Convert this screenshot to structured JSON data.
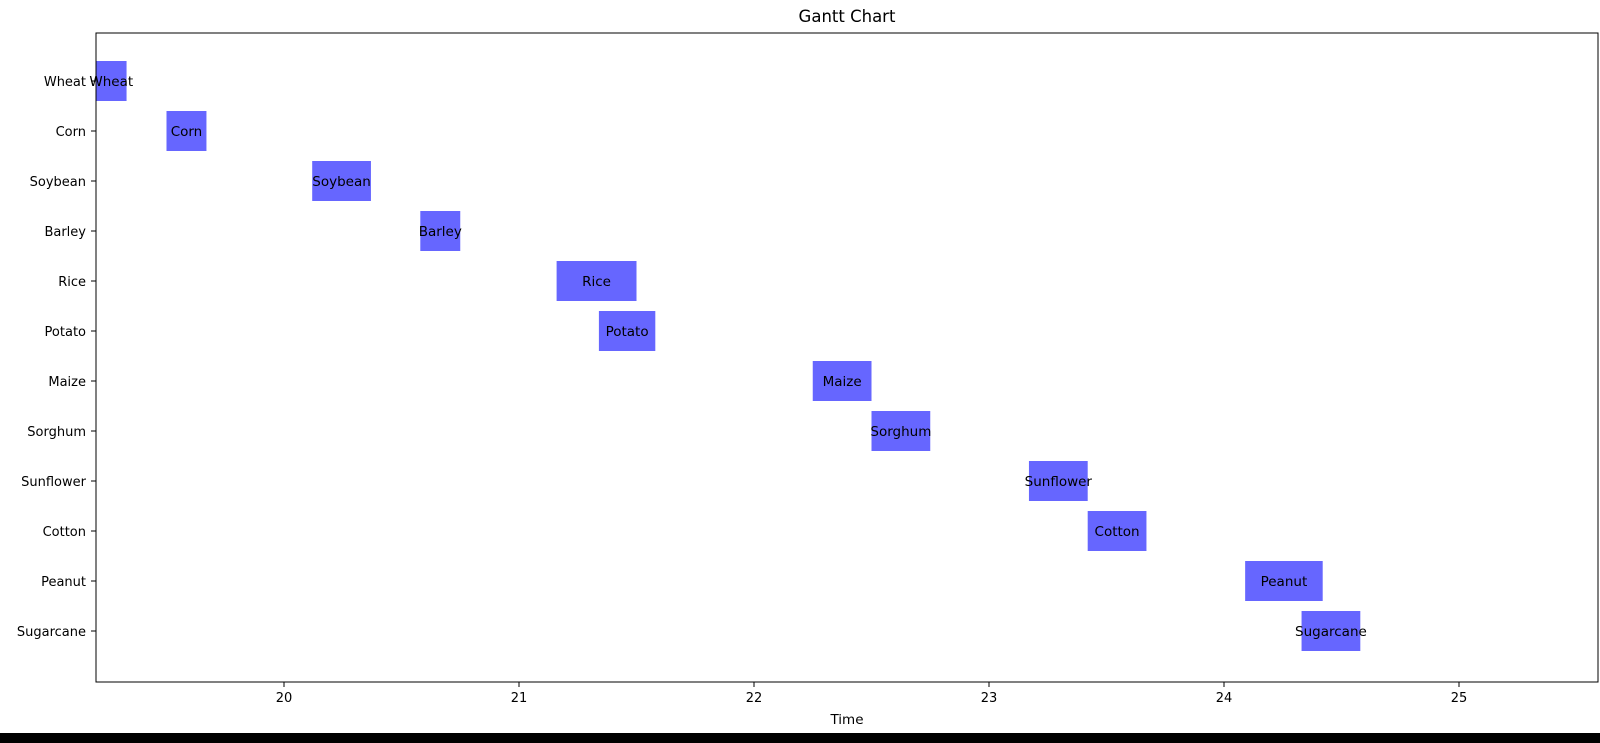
{
  "chart_data": {
    "type": "bar",
    "orientation": "horizontal",
    "title": "Gantt Chart",
    "xlabel": "Time",
    "ylabel": "",
    "xlim": [
      19.2,
      25.6
    ],
    "x_ticks": [
      20,
      21,
      22,
      23,
      24,
      25
    ],
    "grid": false,
    "bar_color": "#6666ff",
    "tasks": [
      {
        "name": "Wheat",
        "start": 19.2,
        "end": 19.33
      },
      {
        "name": "Corn",
        "start": 19.5,
        "end": 19.67
      },
      {
        "name": "Soybean",
        "start": 20.12,
        "end": 20.37
      },
      {
        "name": "Barley",
        "start": 20.58,
        "end": 20.75
      },
      {
        "name": "Rice",
        "start": 21.16,
        "end": 21.5
      },
      {
        "name": "Potato",
        "start": 21.34,
        "end": 21.58
      },
      {
        "name": "Maize",
        "start": 22.25,
        "end": 22.5
      },
      {
        "name": "Sorghum",
        "start": 22.5,
        "end": 22.75
      },
      {
        "name": "Sunflower",
        "start": 23.17,
        "end": 23.42
      },
      {
        "name": "Cotton",
        "start": 23.42,
        "end": 23.67
      },
      {
        "name": "Peanut",
        "start": 24.09,
        "end": 24.42
      },
      {
        "name": "Sugarcane",
        "start": 24.33,
        "end": 24.58
      }
    ]
  }
}
